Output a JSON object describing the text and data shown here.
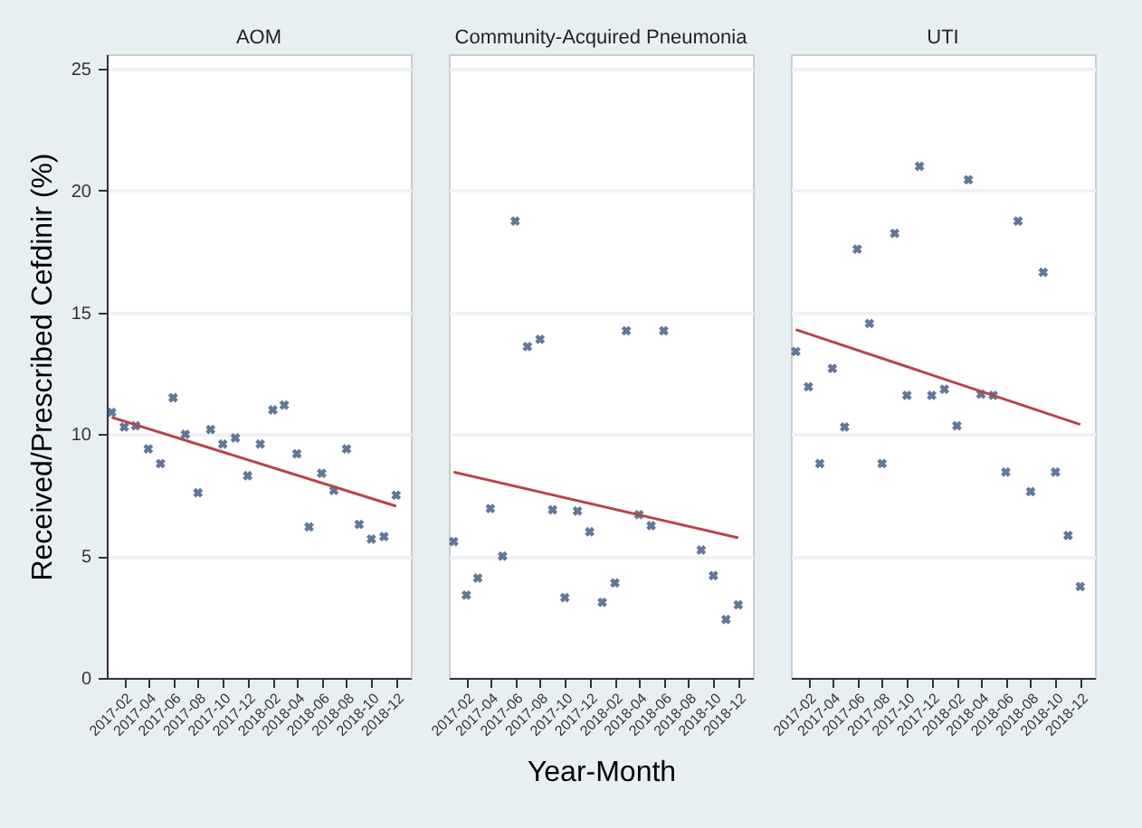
{
  "chart_data": [
    {
      "type": "scatter",
      "title": "AOM",
      "ylabel": "Received/Prescribed Cefdinir (%)",
      "x": [
        "2017-01",
        "2017-02",
        "2017-03",
        "2017-04",
        "2017-05",
        "2017-06",
        "2017-07",
        "2017-08",
        "2017-09",
        "2017-10",
        "2017-11",
        "2017-12",
        "2018-01",
        "2018-02",
        "2018-03",
        "2018-04",
        "2018-05",
        "2018-06",
        "2018-07",
        "2018-08",
        "2018-09",
        "2018-10",
        "2018-11",
        "2018-12"
      ],
      "xlim": [
        "2016-12-20",
        "2019-01-06"
      ],
      "xticks": [
        "2017-02",
        "2017-04",
        "2017-06",
        "2017-08",
        "2017-10",
        "2017-12",
        "2018-02",
        "2018-04",
        "2018-06",
        "2018-08",
        "2018-10",
        "2018-12"
      ],
      "ylim": [
        0,
        25.6
      ],
      "yticks": [
        0,
        5,
        10,
        15,
        20,
        25
      ],
      "grid": "y",
      "series": [
        {
          "type": "scatter",
          "marker": "cross",
          "color": "#1f3f6e",
          "values": [
            10.9,
            10.3,
            10.35,
            9.4,
            8.8,
            11.5,
            10.0,
            7.6,
            10.2,
            9.6,
            9.85,
            8.3,
            9.6,
            11.0,
            11.2,
            9.2,
            6.2,
            8.4,
            7.7,
            9.4,
            6.3,
            5.7,
            5.8,
            7.5
          ]
        },
        {
          "type": "line",
          "marker": "none",
          "color": "#b5454a",
          "x": [
            "2017-01",
            "2018-12"
          ],
          "values": [
            10.7,
            7.05
          ]
        }
      ]
    },
    {
      "type": "scatter",
      "title": "Community-Acquired Pneumonia",
      "xlabel": "Year-Month",
      "x": [
        "2017-01",
        "2017-02",
        "2017-03",
        "2017-04",
        "2017-05",
        "2017-06",
        "2017-07",
        "2017-08",
        "2017-09",
        "2017-10",
        "2017-11",
        "2017-12",
        "2018-01",
        "2018-02",
        "2018-03",
        "2018-04",
        "2018-05",
        "2018-06",
        "2018-07",
        "2018-08",
        "2018-09",
        "2018-10",
        "2018-11",
        "2018-12"
      ],
      "xlim": [
        "2016-12-20",
        "2019-01-06"
      ],
      "xticks": [
        "2017-02",
        "2017-04",
        "2017-06",
        "2017-08",
        "2017-10",
        "2017-12",
        "2018-02",
        "2018-04",
        "2018-06",
        "2018-08",
        "2018-10",
        "2018-12"
      ],
      "ylim": [
        0,
        25.6
      ],
      "yticks": [
        0,
        5,
        10,
        15,
        20,
        25
      ],
      "grid": "y",
      "tick_labels": "x",
      "series": [
        {
          "type": "scatter",
          "marker": "cross",
          "color": "#1f3f6e",
          "values": [
            5.6,
            3.4,
            4.1,
            6.95,
            5.0,
            18.75,
            13.6,
            13.9,
            6.9,
            3.3,
            6.85,
            6.0,
            3.1,
            3.9,
            14.25,
            6.7,
            6.25,
            14.25,
            null,
            null,
            5.25,
            4.2,
            2.4,
            3.0
          ]
        },
        {
          "type": "line",
          "marker": "none",
          "color": "#b5454a",
          "x": [
            "2017-01",
            "2018-12"
          ],
          "values": [
            8.45,
            5.75
          ]
        }
      ]
    },
    {
      "type": "scatter",
      "title": "UTI",
      "x": [
        "2017-01",
        "2017-02",
        "2017-03",
        "2017-04",
        "2017-05",
        "2017-06",
        "2017-07",
        "2017-08",
        "2017-09",
        "2017-10",
        "2017-11",
        "2017-12",
        "2018-01",
        "2018-02",
        "2018-03",
        "2018-04",
        "2018-05",
        "2018-06",
        "2018-07",
        "2018-08",
        "2018-09",
        "2018-10",
        "2018-11",
        "2018-12"
      ],
      "xlim": [
        "2016-12-20",
        "2019-01-06"
      ],
      "xticks": [
        "2017-02",
        "2017-04",
        "2017-06",
        "2017-08",
        "2017-10",
        "2017-12",
        "2018-02",
        "2018-04",
        "2018-06",
        "2018-08",
        "2018-10",
        "2018-12"
      ],
      "ylim": [
        0,
        25.6
      ],
      "yticks": [
        0,
        5,
        10,
        15,
        20,
        25
      ],
      "grid": "y",
      "tick_labels": "x",
      "series": [
        {
          "type": "scatter",
          "marker": "cross",
          "color": "#1f3f6e",
          "values": [
            13.4,
            11.95,
            8.8,
            12.7,
            10.3,
            17.6,
            14.55,
            8.8,
            18.25,
            11.6,
            21.0,
            11.6,
            11.85,
            10.35,
            20.45,
            11.65,
            11.6,
            8.45,
            18.75,
            7.65,
            16.65,
            8.45,
            5.85,
            3.75
          ]
        },
        {
          "type": "line",
          "marker": "none",
          "color": "#b5454a",
          "x": [
            "2017-01",
            "2018-12"
          ],
          "values": [
            14.3,
            10.4
          ]
        }
      ]
    }
  ]
}
